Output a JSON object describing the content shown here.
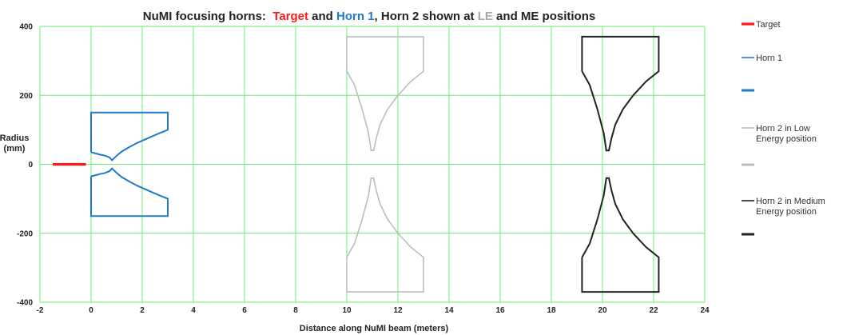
{
  "chart_data": {
    "type": "line",
    "title": {
      "parts": [
        {
          "text": "NuMI focusing horns:  ",
          "color": "#222222"
        },
        {
          "text": "Target",
          "color": "#ff1a1a"
        },
        {
          "text": " and ",
          "color": "#222222"
        },
        {
          "text": "Horn 1",
          "color": "#1f7bc8"
        },
        {
          "text": ", Horn 2 shown at ",
          "color": "#222222"
        },
        {
          "text": "LE",
          "color": "#a6a6a6"
        },
        {
          "text": " and ME positions",
          "color": "#222222"
        }
      ]
    },
    "xlabel": "Distance along NuMI beam (meters)",
    "ylabel": [
      "Radius",
      "(mm)"
    ],
    "xlim": [
      -2,
      24
    ],
    "ylim": [
      -400,
      400
    ],
    "x_ticks": [
      -2,
      0,
      2,
      4,
      6,
      8,
      10,
      12,
      14,
      16,
      18,
      20,
      22,
      24
    ],
    "y_ticks": [
      -400,
      -200,
      0,
      200,
      400
    ],
    "grid": true,
    "grid_color": "#66ee66",
    "legend_position": "right",
    "legend": [
      {
        "label": [
          "Target"
        ],
        "color": "#ff1a1a",
        "width": 3.2,
        "series": "target"
      },
      {
        "label": [
          "Horn 1"
        ],
        "color": "#1f7bc8",
        "width": 1.6,
        "series": "horn1"
      },
      {
        "label": [
          ""
        ],
        "color": "#1f7bc8",
        "width": 3.0,
        "series": "horn1-bold"
      },
      {
        "label": [
          "Horn 2 in Low",
          "Energy position"
        ],
        "color": "#bdbdbd",
        "width": 1.6,
        "series": "horn2-le"
      },
      {
        "label": [
          ""
        ],
        "color": "#bdbdbd",
        "width": 3.0,
        "series": "horn2-le-bold"
      },
      {
        "label": [
          "Horn 2 in Medium",
          "Energy position"
        ],
        "color": "#222222",
        "width": 1.6,
        "series": "horn2-me"
      },
      {
        "label": [
          ""
        ],
        "color": "#222222",
        "width": 3.0,
        "series": "horn2-me-bold"
      }
    ],
    "series": [
      {
        "id": "target",
        "name": "Target",
        "color": "#ff1a1a",
        "width": 3.2,
        "segments": [
          [
            [
              -1.5,
              0
            ],
            [
              -0.2,
              0
            ]
          ]
        ]
      },
      {
        "id": "horn1",
        "name": "Horn 1",
        "color": "#1f7bc8",
        "width": 2,
        "segments": [
          [
            [
              0,
              35
            ],
            [
              0,
              150
            ],
            [
              3,
              150
            ],
            [
              3,
              100
            ],
            [
              2.6,
              88
            ],
            [
              2.2,
              75
            ],
            [
              1.8,
              62
            ],
            [
              1.5,
              50
            ],
            [
              1.2,
              37
            ],
            [
              1.0,
              25
            ],
            [
              0.82,
              12
            ],
            [
              0.72,
              20
            ],
            [
              0.55,
              25
            ],
            [
              0.35,
              28
            ],
            [
              0,
              35
            ]
          ],
          [
            [
              0,
              -35
            ],
            [
              0,
              -150
            ],
            [
              3,
              -150
            ],
            [
              3,
              -100
            ],
            [
              2.6,
              -88
            ],
            [
              2.2,
              -75
            ],
            [
              1.8,
              -62
            ],
            [
              1.5,
              -50
            ],
            [
              1.2,
              -37
            ],
            [
              1.0,
              -25
            ],
            [
              0.82,
              -12
            ],
            [
              0.72,
              -20
            ],
            [
              0.55,
              -25
            ],
            [
              0.35,
              -28
            ],
            [
              0,
              -35
            ]
          ]
        ]
      },
      {
        "id": "horn2-le",
        "name": "Horn 2 in Low Energy position",
        "color": "#bdbdbd",
        "width": 1.6,
        "segments": [
          [
            [
              10,
              270
            ],
            [
              10,
              370
            ],
            [
              13,
              370
            ],
            [
              13,
              270
            ],
            [
              12.5,
              240
            ],
            [
              12.0,
              200
            ],
            [
              11.6,
              160
            ],
            [
              11.3,
              115
            ],
            [
              11.15,
              75
            ],
            [
              11.05,
              40
            ],
            [
              10.95,
              40
            ],
            [
              10.85,
              90
            ],
            [
              10.6,
              160
            ],
            [
              10.3,
              230
            ],
            [
              10,
              270
            ]
          ],
          [
            [
              10,
              -270
            ],
            [
              10,
              -370
            ],
            [
              13,
              -370
            ],
            [
              13,
              -270
            ],
            [
              12.5,
              -240
            ],
            [
              12.0,
              -200
            ],
            [
              11.6,
              -160
            ],
            [
              11.3,
              -115
            ],
            [
              11.15,
              -75
            ],
            [
              11.05,
              -40
            ],
            [
              10.95,
              -40
            ],
            [
              10.85,
              -90
            ],
            [
              10.6,
              -160
            ],
            [
              10.3,
              -230
            ],
            [
              10,
              -270
            ]
          ]
        ]
      },
      {
        "id": "horn2-me",
        "name": "Horn 2 in Medium Energy position",
        "color": "#222222",
        "width": 2,
        "segments": [
          [
            [
              19.2,
              270
            ],
            [
              19.2,
              370
            ],
            [
              22.2,
              370
            ],
            [
              22.2,
              270
            ],
            [
              21.7,
              240
            ],
            [
              21.2,
              200
            ],
            [
              20.8,
              160
            ],
            [
              20.5,
              115
            ],
            [
              20.35,
              75
            ],
            [
              20.25,
              40
            ],
            [
              20.15,
              40
            ],
            [
              20.05,
              90
            ],
            [
              19.8,
              160
            ],
            [
              19.5,
              230
            ],
            [
              19.2,
              270
            ]
          ],
          [
            [
              19.2,
              -270
            ],
            [
              19.2,
              -370
            ],
            [
              22.2,
              -370
            ],
            [
              22.2,
              -270
            ],
            [
              21.7,
              -240
            ],
            [
              21.2,
              -200
            ],
            [
              20.8,
              -160
            ],
            [
              20.5,
              -115
            ],
            [
              20.35,
              -75
            ],
            [
              20.25,
              -40
            ],
            [
              20.15,
              -40
            ],
            [
              20.05,
              -90
            ],
            [
              19.8,
              -160
            ],
            [
              19.5,
              -230
            ],
            [
              19.2,
              -270
            ]
          ]
        ]
      }
    ]
  }
}
